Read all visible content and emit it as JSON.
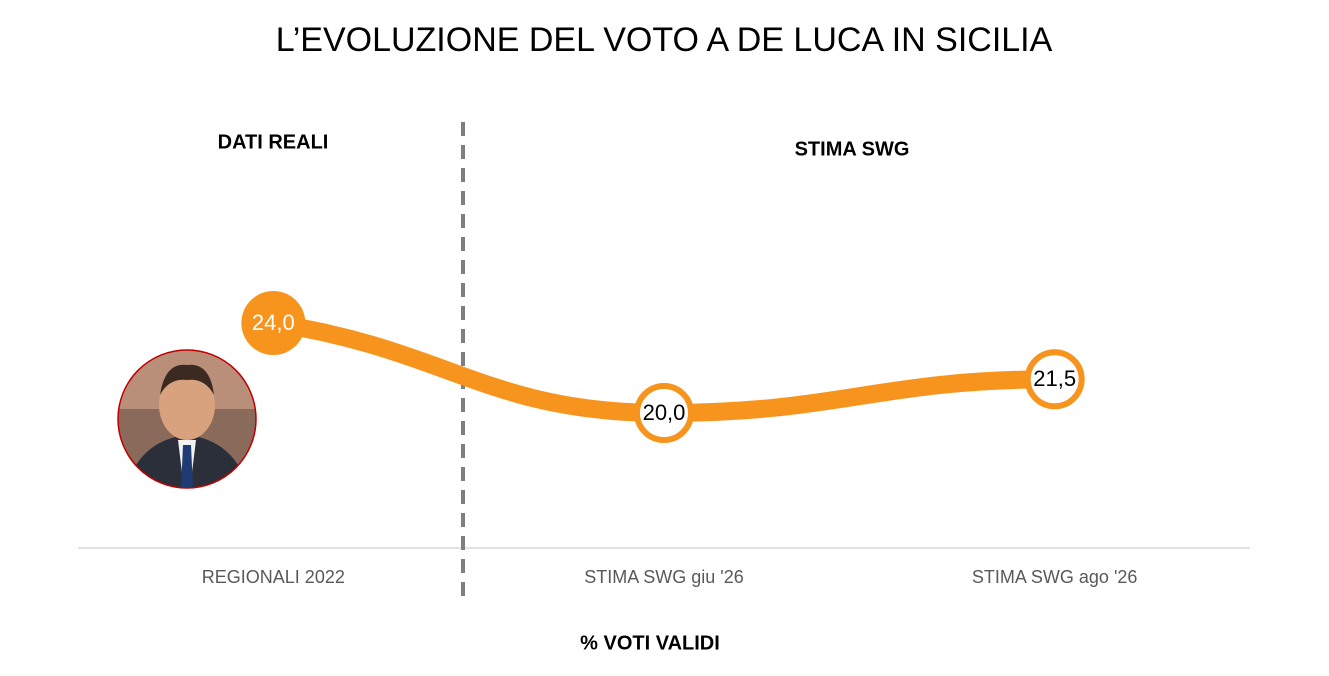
{
  "chart_data": {
    "type": "line",
    "title": "L’EVOLUZIONE DEL VOTO A DE LUCA IN SICILIA",
    "annotations": [
      "DATI REALI",
      "STIMA SWG"
    ],
    "x_label": "% VOTI VALIDI",
    "categories": [
      "REGIONALI 2022",
      "STIMA SWG giu '26",
      "STIMA SWG ago '26"
    ],
    "series": [
      {
        "color": "#f7941d",
        "values": [
          24.0,
          20.0,
          21.5
        ],
        "value_labels": [
          "24,0",
          "20,0",
          "21,5"
        ]
      }
    ],
    "ylim": [
      14,
      34
    ]
  }
}
